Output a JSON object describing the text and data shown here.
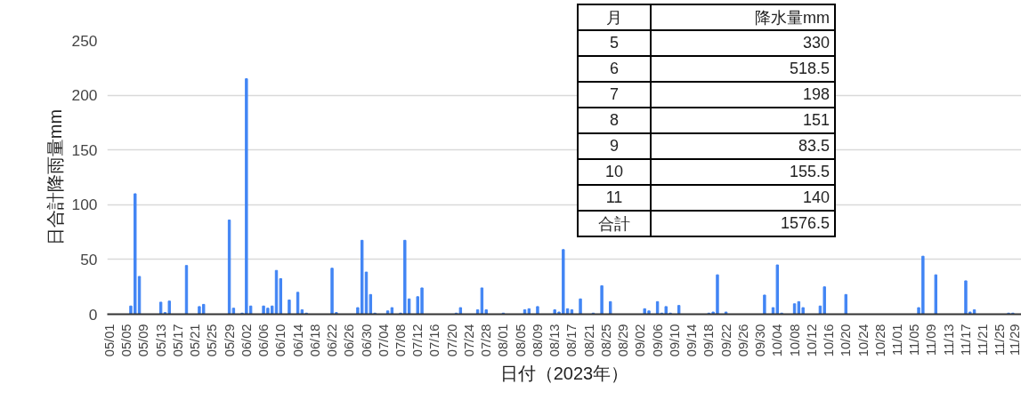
{
  "chart_data": {
    "type": "bar",
    "xlabel": "日付（2023年）",
    "ylabel": "日合計降雨量mm",
    "xlim": [
      "2023-04-30T12:00",
      "2023-11-30T00:00"
    ],
    "ylim": [
      0,
      250
    ],
    "yticks": [
      0,
      50,
      100,
      150,
      200,
      250
    ],
    "xticks": [
      {
        "value": "2023-05-01",
        "label": "05/01"
      },
      {
        "value": "2023-05-05",
        "label": "05/05"
      },
      {
        "value": "2023-05-09",
        "label": "05/09"
      },
      {
        "value": "2023-05-13",
        "label": "05/13"
      },
      {
        "value": "2023-05-17",
        "label": "05/17"
      },
      {
        "value": "2023-05-21",
        "label": "05/21"
      },
      {
        "value": "2023-05-25",
        "label": "05/25"
      },
      {
        "value": "2023-05-29",
        "label": "05/29"
      },
      {
        "value": "2023-06-02",
        "label": "06/02"
      },
      {
        "value": "2023-06-06",
        "label": "06/06"
      },
      {
        "value": "2023-06-10",
        "label": "06/10"
      },
      {
        "value": "2023-06-14",
        "label": "06/14"
      },
      {
        "value": "2023-06-18",
        "label": "06/18"
      },
      {
        "value": "2023-06-22",
        "label": "06/22"
      },
      {
        "value": "2023-06-26",
        "label": "06/26"
      },
      {
        "value": "2023-06-30",
        "label": "06/30"
      },
      {
        "value": "2023-07-04",
        "label": "07/04"
      },
      {
        "value": "2023-07-08",
        "label": "07/08"
      },
      {
        "value": "2023-07-12",
        "label": "07/12"
      },
      {
        "value": "2023-07-16",
        "label": "07/16"
      },
      {
        "value": "2023-07-20",
        "label": "07/20"
      },
      {
        "value": "2023-07-24",
        "label": "07/24"
      },
      {
        "value": "2023-07-28",
        "label": "07/28"
      },
      {
        "value": "2023-08-01",
        "label": "08/01"
      },
      {
        "value": "2023-08-05",
        "label": "08/05"
      },
      {
        "value": "2023-08-09",
        "label": "08/09"
      },
      {
        "value": "2023-08-13",
        "label": "08/13"
      },
      {
        "value": "2023-08-17",
        "label": "08/17"
      },
      {
        "value": "2023-08-21",
        "label": "08/21"
      },
      {
        "value": "2023-08-25",
        "label": "08/25"
      },
      {
        "value": "2023-08-29",
        "label": "08/29"
      },
      {
        "value": "2023-09-02",
        "label": "09/02"
      },
      {
        "value": "2023-09-06",
        "label": "09/06"
      },
      {
        "value": "2023-09-10",
        "label": "09/10"
      },
      {
        "value": "2023-09-14",
        "label": "09/14"
      },
      {
        "value": "2023-09-18",
        "label": "09/18"
      },
      {
        "value": "2023-09-22",
        "label": "09/22"
      },
      {
        "value": "2023-09-26",
        "label": "09/26"
      },
      {
        "value": "2023-09-30",
        "label": "09/30"
      },
      {
        "value": "2023-10-04",
        "label": "10/04"
      },
      {
        "value": "2023-10-08",
        "label": "10/08"
      },
      {
        "value": "2023-10-12",
        "label": "10/12"
      },
      {
        "value": "2023-10-16",
        "label": "10/16"
      },
      {
        "value": "2023-10-20",
        "label": "10/20"
      },
      {
        "value": "2023-10-24",
        "label": "10/24"
      },
      {
        "value": "2023-10-28",
        "label": "10/28"
      },
      {
        "value": "2023-11-01",
        "label": "11/01"
      },
      {
        "value": "2023-11-05",
        "label": "11/05"
      },
      {
        "value": "2023-11-09",
        "label": "11/09"
      },
      {
        "value": "2023-11-13",
        "label": "11/13"
      },
      {
        "value": "2023-11-17",
        "label": "11/17"
      },
      {
        "value": "2023-11-21",
        "label": "11/21"
      },
      {
        "value": "2023-11-25",
        "label": "11/25"
      },
      {
        "value": "2023-11-29",
        "label": "11/29"
      }
    ],
    "grid": "y",
    "series": [
      {
        "color": "#4285f4",
        "x": [
          "2023-05-06",
          "2023-05-07",
          "2023-05-08",
          "2023-05-13",
          "2023-05-14",
          "2023-05-15",
          "2023-05-19",
          "2023-05-22",
          "2023-05-23",
          "2023-05-29",
          "2023-05-30",
          "2023-06-01",
          "2023-06-02",
          "2023-06-03",
          "2023-06-06",
          "2023-06-07",
          "2023-06-08",
          "2023-06-09",
          "2023-06-10",
          "2023-06-12",
          "2023-06-14",
          "2023-06-15",
          "2023-06-16",
          "2023-06-22",
          "2023-06-23",
          "2023-06-28",
          "2023-06-29",
          "2023-06-30",
          "2023-07-01",
          "2023-07-02",
          "2023-07-05",
          "2023-07-06",
          "2023-07-08",
          "2023-07-09",
          "2023-07-10",
          "2023-07-12",
          "2023-07-13",
          "2023-07-21",
          "2023-07-22",
          "2023-07-26",
          "2023-07-27",
          "2023-07-28",
          "2023-08-01",
          "2023-08-06",
          "2023-08-07",
          "2023-08-09",
          "2023-08-13",
          "2023-08-14",
          "2023-08-15",
          "2023-08-16",
          "2023-08-17",
          "2023-08-19",
          "2023-08-22",
          "2023-08-24",
          "2023-08-26",
          "2023-09-03",
          "2023-09-04",
          "2023-09-06",
          "2023-09-07",
          "2023-09-08",
          "2023-09-09",
          "2023-09-11",
          "2023-09-18",
          "2023-09-19",
          "2023-09-20",
          "2023-09-22",
          "2023-10-01",
          "2023-10-03",
          "2023-10-04",
          "2023-10-05",
          "2023-10-08",
          "2023-10-09",
          "2023-10-10",
          "2023-10-14",
          "2023-10-15",
          "2023-10-20",
          "2023-11-06",
          "2023-11-07",
          "2023-11-10",
          "2023-11-17",
          "2023-11-18",
          "2023-11-19",
          "2023-11-27",
          "2023-11-28"
        ],
        "values": [
          7.5,
          110,
          34.5,
          11,
          1.5,
          12,
          44.5,
          7,
          9,
          86,
          5.5,
          1,
          215,
          7.5,
          7.5,
          5.5,
          7.5,
          40,
          32.5,
          13,
          20,
          4,
          1,
          42,
          1.5,
          6,
          67.5,
          38.5,
          18,
          1,
          3,
          6,
          1,
          67.5,
          14,
          16,
          24,
          1,
          6,
          4,
          24,
          4,
          1,
          4,
          5,
          7,
          4,
          2,
          59,
          5,
          4,
          14,
          1,
          26,
          11.5,
          5,
          3,
          11.5,
          1,
          7,
          1,
          8,
          1,
          2,
          36,
          2,
          17.5,
          6,
          45,
          1,
          9.5,
          11.5,
          6,
          7.5,
          25,
          18,
          6,
          53,
          36,
          30.5,
          2,
          4,
          1,
          1
        ]
      }
    ],
    "annotations": [
      "月",
      "降水量mm",
      "5",
      "330",
      "6",
      "518.5",
      "7",
      "198",
      "8",
      "151",
      "9",
      "83.5",
      "10",
      "155.5",
      "11",
      "140",
      "合計",
      "1576.5"
    ]
  }
}
